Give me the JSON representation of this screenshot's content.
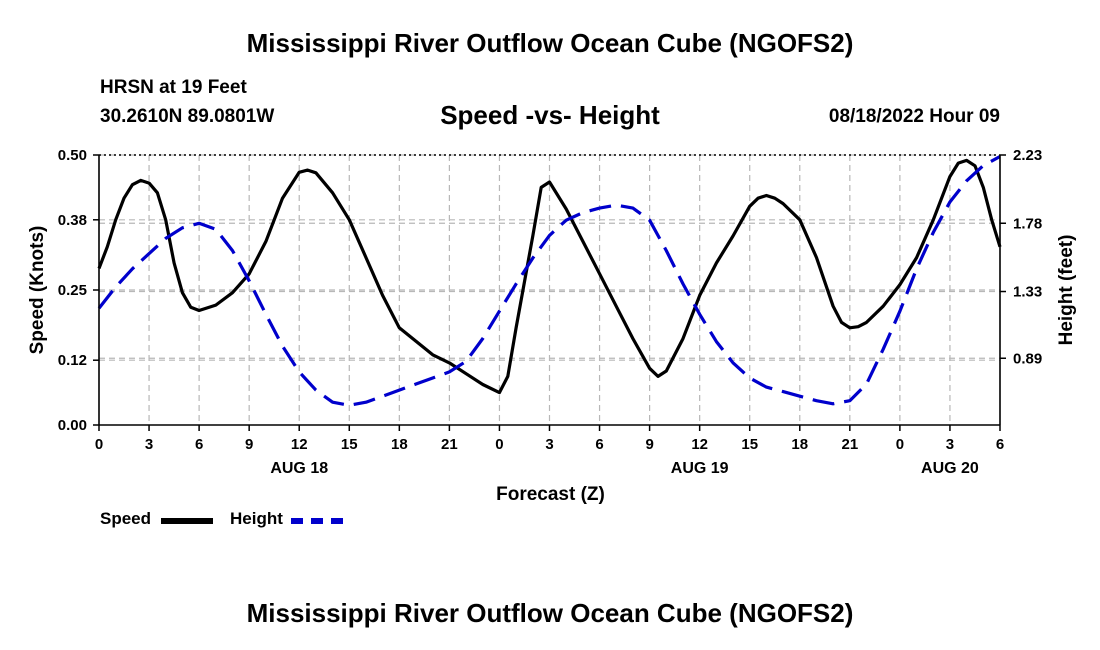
{
  "header": {
    "title": "Mississippi River Outflow Ocean Cube (NGOFS2)",
    "station": "HRSN at 19 Feet",
    "coords": "30.2610N  89.0801W",
    "subtitle": "Speed -vs- Height",
    "datetime": "08/18/2022 Hour 09",
    "footer_title": "Mississippi River Outflow Ocean Cube (NGOFS2)"
  },
  "legend": {
    "speed_label": "Speed",
    "height_label": "Height"
  },
  "chart_data": {
    "type": "line",
    "title": "Speed -vs- Height",
    "xlabel": "Forecast (Z)",
    "ylabel": "Speed (Knots)",
    "y2label": "Height (feet)",
    "x_range_hours": [
      0,
      54
    ],
    "ylim": [
      0,
      0.5
    ],
    "y2lim": [
      0.45,
      2.23
    ],
    "x_ticks": [
      {
        "h": 0,
        "label": "0"
      },
      {
        "h": 3,
        "label": "3"
      },
      {
        "h": 6,
        "label": "6"
      },
      {
        "h": 9,
        "label": "9"
      },
      {
        "h": 12,
        "label": "12"
      },
      {
        "h": 15,
        "label": "15"
      },
      {
        "h": 18,
        "label": "18"
      },
      {
        "h": 21,
        "label": "21"
      },
      {
        "h": 24,
        "label": "0"
      },
      {
        "h": 27,
        "label": "3"
      },
      {
        "h": 30,
        "label": "6"
      },
      {
        "h": 33,
        "label": "9"
      },
      {
        "h": 36,
        "label": "12"
      },
      {
        "h": 39,
        "label": "15"
      },
      {
        "h": 42,
        "label": "18"
      },
      {
        "h": 45,
        "label": "21"
      },
      {
        "h": 48,
        "label": "0"
      },
      {
        "h": 51,
        "label": "3"
      },
      {
        "h": 54,
        "label": "6"
      }
    ],
    "date_labels": [
      {
        "h": 12,
        "label": "AUG 18"
      },
      {
        "h": 36,
        "label": "AUG 19"
      },
      {
        "h": 51,
        "label": "AUG 20"
      }
    ],
    "y_ticks": [
      0.0,
      0.12,
      0.25,
      0.38,
      0.5
    ],
    "y_tick_labels": [
      "0.00",
      "0.12",
      "0.25",
      "0.38",
      "0.50"
    ],
    "y2_ticks": [
      0.89,
      1.33,
      1.78,
      2.23
    ],
    "y2_tick_labels": [
      "0.89",
      "1.33",
      "1.78",
      "2.23"
    ],
    "series": [
      {
        "name": "Speed",
        "axis": "left",
        "color": "#000000",
        "style": "solid",
        "points": [
          [
            0,
            0.29
          ],
          [
            0.5,
            0.33
          ],
          [
            1,
            0.38
          ],
          [
            1.5,
            0.42
          ],
          [
            2,
            0.445
          ],
          [
            2.5,
            0.453
          ],
          [
            3,
            0.448
          ],
          [
            3.5,
            0.43
          ],
          [
            4,
            0.38
          ],
          [
            4.5,
            0.3
          ],
          [
            5,
            0.245
          ],
          [
            5.5,
            0.218
          ],
          [
            6,
            0.212
          ],
          [
            7,
            0.222
          ],
          [
            8,
            0.245
          ],
          [
            9,
            0.28
          ],
          [
            10,
            0.34
          ],
          [
            11,
            0.42
          ],
          [
            12,
            0.468
          ],
          [
            12.5,
            0.472
          ],
          [
            13,
            0.467
          ],
          [
            14,
            0.43
          ],
          [
            15,
            0.38
          ],
          [
            16,
            0.31
          ],
          [
            17,
            0.24
          ],
          [
            18,
            0.18
          ],
          [
            19,
            0.155
          ],
          [
            20,
            0.13
          ],
          [
            21,
            0.115
          ],
          [
            22,
            0.095
          ],
          [
            23,
            0.075
          ],
          [
            24,
            0.06
          ],
          [
            24.5,
            0.09
          ],
          [
            25,
            0.18
          ],
          [
            26,
            0.35
          ],
          [
            26.5,
            0.44
          ],
          [
            27,
            0.45
          ],
          [
            28,
            0.4
          ],
          [
            29,
            0.34
          ],
          [
            30,
            0.28
          ],
          [
            31,
            0.22
          ],
          [
            32,
            0.16
          ],
          [
            33,
            0.105
          ],
          [
            33.5,
            0.09
          ],
          [
            34,
            0.1
          ],
          [
            35,
            0.16
          ],
          [
            36,
            0.24
          ],
          [
            37,
            0.3
          ],
          [
            38,
            0.35
          ],
          [
            39,
            0.405
          ],
          [
            39.5,
            0.42
          ],
          [
            40,
            0.425
          ],
          [
            40.5,
            0.42
          ],
          [
            41,
            0.41
          ],
          [
            42,
            0.38
          ],
          [
            43,
            0.31
          ],
          [
            44,
            0.22
          ],
          [
            44.5,
            0.19
          ],
          [
            45,
            0.18
          ],
          [
            45.5,
            0.182
          ],
          [
            46,
            0.19
          ],
          [
            47,
            0.22
          ],
          [
            48,
            0.26
          ],
          [
            49,
            0.31
          ],
          [
            50,
            0.38
          ],
          [
            51,
            0.46
          ],
          [
            51.5,
            0.485
          ],
          [
            52,
            0.49
          ],
          [
            52.5,
            0.48
          ],
          [
            53,
            0.44
          ],
          [
            53.5,
            0.38
          ],
          [
            54,
            0.33
          ]
        ]
      },
      {
        "name": "Height",
        "axis": "right",
        "color": "#0000cc",
        "style": "dashed",
        "points": [
          [
            0,
            1.22
          ],
          [
            1,
            1.36
          ],
          [
            2,
            1.48
          ],
          [
            3,
            1.58
          ],
          [
            4,
            1.68
          ],
          [
            5,
            1.75
          ],
          [
            6,
            1.78
          ],
          [
            7,
            1.74
          ],
          [
            8,
            1.6
          ],
          [
            9,
            1.4
          ],
          [
            10,
            1.18
          ],
          [
            11,
            0.97
          ],
          [
            12,
            0.8
          ],
          [
            13,
            0.68
          ],
          [
            14,
            0.6
          ],
          [
            15,
            0.58
          ],
          [
            16,
            0.6
          ],
          [
            17,
            0.64
          ],
          [
            18,
            0.68
          ],
          [
            19,
            0.72
          ],
          [
            20,
            0.76
          ],
          [
            21,
            0.8
          ],
          [
            22,
            0.87
          ],
          [
            23,
            1.02
          ],
          [
            24,
            1.2
          ],
          [
            25,
            1.38
          ],
          [
            26,
            1.55
          ],
          [
            27,
            1.7
          ],
          [
            28,
            1.8
          ],
          [
            29,
            1.85
          ],
          [
            30,
            1.88
          ],
          [
            31,
            1.9
          ],
          [
            32,
            1.88
          ],
          [
            33,
            1.8
          ],
          [
            34,
            1.6
          ],
          [
            35,
            1.38
          ],
          [
            36,
            1.18
          ],
          [
            37,
            1.0
          ],
          [
            38,
            0.86
          ],
          [
            39,
            0.76
          ],
          [
            40,
            0.7
          ],
          [
            41,
            0.67
          ],
          [
            42,
            0.64
          ],
          [
            43,
            0.61
          ],
          [
            44,
            0.59
          ],
          [
            45,
            0.61
          ],
          [
            46,
            0.72
          ],
          [
            47,
            0.95
          ],
          [
            48,
            1.2
          ],
          [
            49,
            1.48
          ],
          [
            50,
            1.72
          ],
          [
            51,
            1.92
          ],
          [
            52,
            2.06
          ],
          [
            53,
            2.16
          ],
          [
            54,
            2.22
          ]
        ]
      }
    ]
  }
}
